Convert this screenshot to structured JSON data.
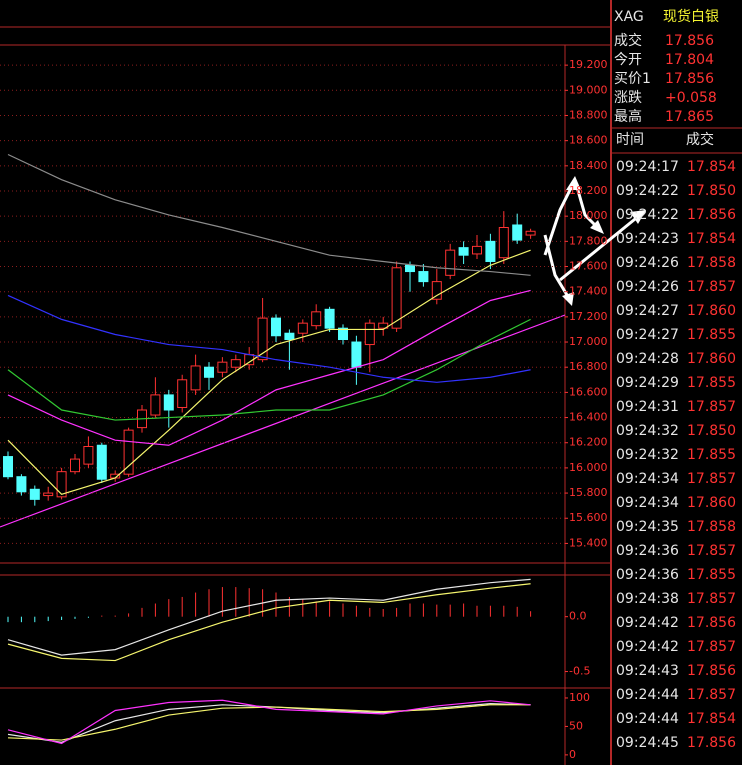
{
  "chart_data": [
    {
      "type": "candlestick",
      "up_color": "#ff3232",
      "down_color": "#54ffff",
      "axis_color": "#ff3232",
      "grid": true,
      "ylim": [
        15.3,
        19.36
      ],
      "yticks": [
        {
          "value": 15.4,
          "label": "15.400"
        },
        {
          "value": 15.6,
          "label": "15.600"
        },
        {
          "value": 15.8,
          "label": "15.800"
        },
        {
          "value": 16.0,
          "label": "16.000"
        },
        {
          "value": 16.2,
          "label": "16.200"
        },
        {
          "value": 16.4,
          "label": "16.400"
        },
        {
          "value": 16.6,
          "label": "16.600"
        },
        {
          "value": 16.8,
          "label": "16.800"
        },
        {
          "value": 17.0,
          "label": "17.000"
        },
        {
          "value": 17.2,
          "label": "17.200"
        },
        {
          "value": 17.4,
          "label": "17.400"
        },
        {
          "value": 17.6,
          "label": "17.600"
        },
        {
          "value": 17.8,
          "label": "17.800"
        },
        {
          "value": 18.0,
          "label": "18.000"
        },
        {
          "value": 18.2,
          "label": "18.200"
        },
        {
          "value": 18.4,
          "label": "18.400"
        },
        {
          "value": 18.6,
          "label": "18.600"
        },
        {
          "value": 18.8,
          "label": "18.800"
        },
        {
          "value": 19.0,
          "label": "19.000"
        },
        {
          "value": 19.2,
          "label": "19.200"
        }
      ],
      "open": [
        16.09,
        15.93,
        15.83,
        15.78,
        15.77,
        15.97,
        16.03,
        16.18,
        15.92,
        15.95,
        16.32,
        16.42,
        16.58,
        16.48,
        16.62,
        16.8,
        16.76,
        16.8,
        16.82,
        16.86,
        17.19,
        17.07,
        17.07,
        17.13,
        17.26,
        17.11,
        17.0,
        16.98,
        17.11,
        17.11,
        17.61,
        17.56,
        17.34,
        17.53,
        17.75,
        17.7,
        17.8,
        17.67,
        17.93,
        17.85
      ],
      "high": [
        16.13,
        15.95,
        15.86,
        15.85,
        16.0,
        16.11,
        16.25,
        16.2,
        15.98,
        16.32,
        16.5,
        16.72,
        16.62,
        16.74,
        16.9,
        16.84,
        16.88,
        16.9,
        16.96,
        17.35,
        17.22,
        17.1,
        17.18,
        17.3,
        17.28,
        17.14,
        17.05,
        17.18,
        17.2,
        17.64,
        17.64,
        17.62,
        17.58,
        17.78,
        17.8,
        17.85,
        17.86,
        18.04,
        18.02,
        17.9
      ],
      "low": [
        15.91,
        15.78,
        15.7,
        15.74,
        15.75,
        15.95,
        16.0,
        15.88,
        15.89,
        15.93,
        16.28,
        16.4,
        16.32,
        16.44,
        16.58,
        16.62,
        16.72,
        16.76,
        16.78,
        16.84,
        17.0,
        16.78,
        17.0,
        17.1,
        17.08,
        16.98,
        16.66,
        16.76,
        17.05,
        17.08,
        17.4,
        17.44,
        17.3,
        17.5,
        17.62,
        17.66,
        17.58,
        17.62,
        17.78,
        17.82
      ],
      "close": [
        15.93,
        15.81,
        15.75,
        15.8,
        15.97,
        16.07,
        16.17,
        15.91,
        15.95,
        16.3,
        16.46,
        16.58,
        16.46,
        16.7,
        16.81,
        16.72,
        16.84,
        16.86,
        16.9,
        17.19,
        17.05,
        17.02,
        17.15,
        17.24,
        17.11,
        17.02,
        16.8,
        17.15,
        17.15,
        17.59,
        17.56,
        17.48,
        17.48,
        17.73,
        17.69,
        17.76,
        17.64,
        17.91,
        17.81,
        17.88
      ],
      "series": [
        {
          "color": "#f5f56e",
          "x": [
            0,
            4,
            8,
            12,
            16,
            20,
            24,
            28,
            32,
            36,
            39
          ],
          "values": [
            16.22,
            15.79,
            15.92,
            16.3,
            16.7,
            16.98,
            17.1,
            17.1,
            17.37,
            17.61,
            17.73
          ]
        },
        {
          "color": "#ff32ff",
          "x": [
            0,
            4,
            8,
            12,
            16,
            20,
            24,
            28,
            32,
            36,
            39
          ],
          "values": [
            16.58,
            16.38,
            16.22,
            16.18,
            16.38,
            16.62,
            16.74,
            16.86,
            17.1,
            17.33,
            17.41
          ]
        },
        {
          "color": "#32c832",
          "x": [
            0,
            4,
            8,
            12,
            16,
            20,
            24,
            28,
            32,
            36,
            39
          ],
          "values": [
            16.78,
            16.46,
            16.38,
            16.4,
            16.42,
            16.46,
            16.46,
            16.58,
            16.78,
            17.02,
            17.18
          ]
        },
        {
          "color": "#3232ff",
          "x": [
            0,
            4,
            8,
            12,
            16,
            20,
            24,
            28,
            32,
            36,
            39
          ],
          "values": [
            17.37,
            17.18,
            17.06,
            16.98,
            16.94,
            16.86,
            16.8,
            16.72,
            16.68,
            16.72,
            16.78
          ]
        },
        {
          "color": "#8c8c8c",
          "x": [
            0,
            4,
            8,
            12,
            16,
            20,
            24,
            28,
            32,
            36,
            39
          ],
          "values": [
            18.49,
            18.29,
            18.13,
            18.01,
            17.91,
            17.8,
            17.69,
            17.64,
            17.59,
            17.56,
            17.53
          ]
        }
      ]
    },
    {
      "type": "bar",
      "up_color": "#ff3232",
      "down_color": "#54ffff",
      "axis_color": "#ff3232",
      "grid": false,
      "ylim": [
        -0.65,
        0.38
      ],
      "yticks": [
        {
          "value": 0,
          "label": "0.0"
        },
        {
          "value": -0.5,
          "label": "-0.5"
        }
      ],
      "values": [
        -0.05,
        -0.05,
        -0.05,
        -0.04,
        -0.03,
        -0.02,
        -0.01,
        0.01,
        0.01,
        0.03,
        0.08,
        0.12,
        0.16,
        0.18,
        0.22,
        0.25,
        0.27,
        0.27,
        0.26,
        0.25,
        0.22,
        0.18,
        0.16,
        0.14,
        0.14,
        0.12,
        0.1,
        0.08,
        0.07,
        0.08,
        0.12,
        0.12,
        0.11,
        0.11,
        0.12,
        0.1,
        0.1,
        0.1,
        0.09,
        0.05
      ],
      "series": [
        {
          "color": "#e6e6e6",
          "x": [
            0,
            4,
            8,
            12,
            16,
            20,
            24,
            28,
            32,
            36,
            39
          ],
          "values": [
            -0.21,
            -0.35,
            -0.3,
            -0.12,
            0.05,
            0.15,
            0.17,
            0.15,
            0.25,
            0.31,
            0.34
          ]
        },
        {
          "color": "#f5f56e",
          "x": [
            0,
            4,
            8,
            12,
            16,
            20,
            24,
            28,
            32,
            36,
            39
          ],
          "values": [
            -0.25,
            -0.38,
            -0.4,
            -0.21,
            -0.05,
            0.08,
            0.15,
            0.13,
            0.2,
            0.26,
            0.3
          ]
        }
      ]
    },
    {
      "type": "line",
      "axis_color": "#ff3232",
      "grid": false,
      "ylim": [
        -9,
        114
      ],
      "yticks": [
        100,
        50,
        0
      ],
      "series": [
        {
          "color": "#e6e6e6",
          "x": [
            0,
            4,
            8,
            12,
            16,
            20,
            24,
            28,
            32,
            36,
            39
          ],
          "values": [
            36,
            22,
            60,
            80,
            88,
            84,
            78,
            74,
            82,
            90,
            88
          ]
        },
        {
          "color": "#f5f56e",
          "x": [
            0,
            4,
            8,
            12,
            16,
            20,
            24,
            28,
            32,
            36,
            39
          ],
          "values": [
            30,
            26,
            45,
            70,
            82,
            84,
            80,
            76,
            80,
            88,
            88
          ]
        },
        {
          "color": "#ff32ff",
          "x": [
            0,
            4,
            8,
            12,
            16,
            20,
            24,
            28,
            32,
            36,
            39
          ],
          "values": [
            44,
            20,
            78,
            92,
            96,
            80,
            76,
            72,
            86,
            95,
            88
          ]
        }
      ]
    }
  ],
  "quote": {
    "symbol": "XAG",
    "name": "现货白银",
    "rows": [
      [
        "成交",
        "17.856"
      ],
      [
        "今开",
        "17.804"
      ],
      [
        "买价1",
        "17.856"
      ],
      [
        "涨跌",
        "+0.058"
      ],
      [
        "最高",
        "17.865"
      ]
    ]
  },
  "trades": {
    "header": [
      "时间",
      "成交"
    ],
    "rows": [
      [
        "09:24:17",
        "17.854"
      ],
      [
        "09:24:22",
        "17.850"
      ],
      [
        "09:24:22",
        "17.856"
      ],
      [
        "09:24:23",
        "17.854"
      ],
      [
        "09:24:26",
        "17.858"
      ],
      [
        "09:24:26",
        "17.857"
      ],
      [
        "09:24:27",
        "17.860"
      ],
      [
        "09:24:27",
        "17.855"
      ],
      [
        "09:24:28",
        "17.860"
      ],
      [
        "09:24:29",
        "17.855"
      ],
      [
        "09:24:31",
        "17.857"
      ],
      [
        "09:24:32",
        "17.850"
      ],
      [
        "09:24:32",
        "17.855"
      ],
      [
        "09:24:34",
        "17.857"
      ],
      [
        "09:24:34",
        "17.860"
      ],
      [
        "09:24:35",
        "17.858"
      ],
      [
        "09:24:36",
        "17.857"
      ],
      [
        "09:24:36",
        "17.855"
      ],
      [
        "09:24:38",
        "17.857"
      ],
      [
        "09:24:42",
        "17.856"
      ],
      [
        "09:24:42",
        "17.857"
      ],
      [
        "09:24:43",
        "17.856"
      ],
      [
        "09:24:44",
        "17.857"
      ],
      [
        "09:24:44",
        "17.854"
      ],
      [
        "09:24:45",
        "17.856"
      ]
    ]
  }
}
